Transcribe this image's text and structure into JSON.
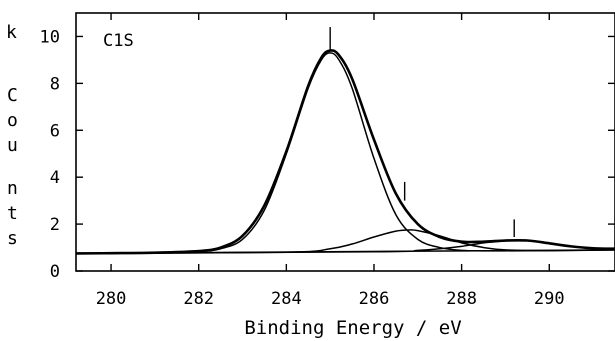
{
  "chart_data": {
    "type": "line",
    "title": "C1S",
    "xlabel": "Binding Energy / eV",
    "ylabel": "k Counts",
    "xlim": [
      279.2,
      291.5
    ],
    "ylim": [
      0,
      11
    ],
    "x_ticks": [
      280,
      282,
      284,
      286,
      288,
      290
    ],
    "y_ticks": [
      0,
      2,
      4,
      6,
      8,
      10
    ],
    "grid": false,
    "series": [
      {
        "role": "envelope",
        "x": [
          279.2,
          280,
          281,
          282,
          282.5,
          283,
          283.5,
          284,
          284.5,
          284.8,
          285,
          285.2,
          285.5,
          286,
          286.5,
          287,
          287.5,
          288,
          288.5,
          289,
          289.5,
          290,
          290.5,
          291,
          291.5
        ],
        "values": [
          0.75,
          0.76,
          0.78,
          0.85,
          1.0,
          1.5,
          2.8,
          5.1,
          7.9,
          9.1,
          9.4,
          9.2,
          8.2,
          5.6,
          3.3,
          2.0,
          1.45,
          1.25,
          1.25,
          1.3,
          1.3,
          1.18,
          1.05,
          0.97,
          0.95
        ]
      },
      {
        "role": "component",
        "x": [
          279.2,
          280,
          281,
          282,
          282.5,
          283,
          283.5,
          284,
          284.5,
          284.8,
          285,
          285.2,
          285.5,
          286,
          286.5,
          287,
          287.5,
          288,
          288.5,
          289,
          290,
          291.5
        ],
        "values": [
          0.75,
          0.76,
          0.78,
          0.83,
          0.95,
          1.35,
          2.6,
          5.0,
          7.8,
          9.0,
          9.3,
          9.0,
          7.8,
          4.8,
          2.4,
          1.35,
          1.0,
          0.88,
          0.86,
          0.86,
          0.87,
          0.9
        ]
      },
      {
        "role": "component",
        "x": [
          279.2,
          284,
          285,
          285.5,
          286,
          286.5,
          286.8,
          287,
          287.5,
          288,
          288.5,
          289,
          290,
          291.5
        ],
        "values": [
          0.75,
          0.8,
          0.95,
          1.15,
          1.45,
          1.7,
          1.75,
          1.72,
          1.5,
          1.2,
          1.0,
          0.9,
          0.87,
          0.9
        ]
      },
      {
        "role": "component",
        "x": [
          279.2,
          286,
          287,
          287.5,
          288,
          288.5,
          289,
          289.3,
          289.6,
          290,
          290.5,
          291,
          291.5
        ],
        "values": [
          0.75,
          0.82,
          0.88,
          0.95,
          1.05,
          1.2,
          1.28,
          1.3,
          1.28,
          1.18,
          1.05,
          0.97,
          0.95
        ]
      },
      {
        "role": "baseline",
        "x": [
          279.2,
          291.5
        ],
        "values": [
          0.75,
          0.9
        ]
      }
    ],
    "peak_markers": [
      {
        "x": 285.0,
        "y_from": 9.4,
        "y_to": 10.4
      },
      {
        "x": 286.7,
        "y_from": 3.0,
        "y_to": 3.8
      },
      {
        "x": 289.2,
        "y_from": 1.45,
        "y_to": 2.2
      }
    ]
  },
  "ylabel_chars": [
    "k",
    "C",
    "o",
    "u",
    "n",
    "t",
    "s"
  ]
}
